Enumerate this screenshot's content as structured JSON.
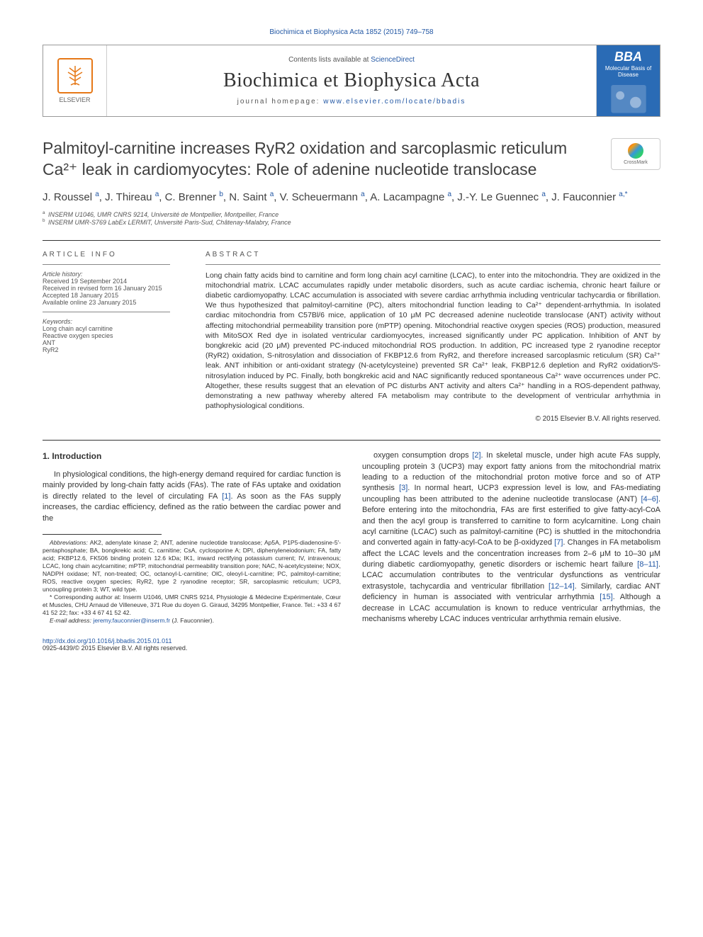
{
  "colors": {
    "link": "#2257a4",
    "text": "#333333",
    "heading": "#404040",
    "elsevier_orange": "#e67817",
    "bba_blue": "#2a6bb5"
  },
  "top_citation": "Biochimica et Biophysica Acta 1852 (2015) 749–758",
  "header": {
    "elsevier_label": "ELSEVIER",
    "contents_prefix": "Contents lists available at ",
    "contents_link": "ScienceDirect",
    "journal_name": "Biochimica et Biophysica Acta",
    "homepage_prefix": "journal homepage: ",
    "homepage_link": "www.elsevier.com/locate/bbadis",
    "bba_label": "BBA",
    "bba_sub": "Molecular Basis of Disease"
  },
  "crossmark_label": "CrossMark",
  "title": "Palmitoyl-carnitine increases RyR2 oxidation and sarcoplasmic reticulum Ca²⁺ leak in cardiomyocytes: Role of adenine nucleotide translocase",
  "authors_html": "J. Roussel <sup>a</sup>, J. Thireau <sup>a</sup>, C. Brenner <sup>b</sup>, N. Saint <sup>a</sup>, V. Scheuermann <sup>a</sup>, A. Lacampagne <sup>a</sup>, J.-Y. Le Guennec <sup>a</sup>, J. Fauconnier <sup>a,*</sup>",
  "affiliations": [
    {
      "sup": "a",
      "text": "INSERM U1046, UMR CNRS 9214, Université de Montpellier, Montpellier, France"
    },
    {
      "sup": "b",
      "text": "INSERM UMR-S769 LabEx LERMIT, Université Paris-Sud, Châtenay-Malabry, France"
    }
  ],
  "info": {
    "heading": "ARTICLE INFO",
    "history_label": "Article history:",
    "history": [
      "Received 19 September 2014",
      "Received in revised form 16 January 2015",
      "Accepted 18 January 2015",
      "Available online 23 January 2015"
    ],
    "keywords_label": "Keywords:",
    "keywords": [
      "Long chain acyl carnitine",
      "Reactive oxygen species",
      "ANT",
      "RyR2"
    ]
  },
  "abstract": {
    "heading": "ABSTRACT",
    "text": "Long chain fatty acids bind to carnitine and form long chain acyl carnitine (LCAC), to enter into the mitochondria. They are oxidized in the mitochondrial matrix. LCAC accumulates rapidly under metabolic disorders, such as acute cardiac ischemia, chronic heart failure or diabetic cardiomyopathy. LCAC accumulation is associated with severe cardiac arrhythmia including ventricular tachycardia or fibrillation. We thus hypothesized that palmitoyl-carnitine (PC), alters mitochondrial function leading to Ca²⁺ dependent-arrhythmia. In isolated cardiac mitochondria from C57Bl/6 mice, application of 10 μM PC decreased adenine nucleotide translocase (ANT) activity without affecting mitochondrial permeability transition pore (mPTP) opening. Mitochondrial reactive oxygen species (ROS) production, measured with MitoSOX Red dye in isolated ventricular cardiomyocytes, increased significantly under PC application. Inhibition of ANT by bongkrekic acid (20 μM) prevented PC-induced mitochondrial ROS production. In addition, PC increased type 2 ryanodine receptor (RyR2) oxidation, S-nitrosylation and dissociation of FKBP12.6 from RyR2, and therefore increased sarcoplasmic reticulum (SR) Ca²⁺ leak. ANT inhibition or anti-oxidant strategy (N-acetylcysteine) prevented SR Ca²⁺ leak, FKBP12.6 depletion and RyR2 oxidation/S-nitrosylation induced by PC. Finally, both bongkrekic acid and NAC significantly reduced spontaneous Ca²⁺ wave occurrences under PC. Altogether, these results suggest that an elevation of PC disturbs ANT activity and alters Ca²⁺ handling in a ROS-dependent pathway, demonstrating a new pathway whereby altered FA metabolism may contribute to the development of ventricular arrhythmia in pathophysiological conditions.",
    "copyright": "© 2015 Elsevier B.V. All rights reserved."
  },
  "intro": {
    "heading": "1. Introduction",
    "col1": "In physiological conditions, the high-energy demand required for cardiac function is mainly provided by long-chain fatty acids (FAs). The rate of FAs uptake and oxidation is directly related to the level of circulating FA [1]. As soon as the FAs supply increases, the cardiac efficiency, defined as the ratio between the cardiac power and the",
    "col2": "oxygen consumption drops [2]. In skeletal muscle, under high acute FAs supply, uncoupling protein 3 (UCP3) may export fatty anions from the mitochondrial matrix leading to a reduction of the mitochondrial proton motive force and so of ATP synthesis [3]. In normal heart, UCP3 expression level is low, and FAs-mediating uncoupling has been attributed to the adenine nucleotide translocase (ANT) [4–6]. Before entering into the mitochondria, FAs are first esterified to give fatty-acyl-CoA and then the acyl group is transferred to carnitine to form acylcarnitine. Long chain acyl carnitine (LCAC) such as palmitoyl-carnitine (PC) is shuttled in the mitochondria and converted again in fatty-acyl-CoA to be β-oxidyzed [7]. Changes in FA metabolism affect the LCAC levels and the concentration increases from 2–6 μM to 10–30 μM during diabetic cardiomyopathy, genetic disorders or ischemic heart failure [8–11]. LCAC accumulation contributes to the ventricular dysfunctions as ventricular extrasystole, tachycardia and ventricular fibrillation [12–14]. Similarly, cardiac ANT deficiency in human is associated with ventricular arrhythmia [15]. Although a decrease in LCAC accumulation is known to reduce ventricular arrhythmias, the mechanisms whereby LCAC induces ventricular arrhythmia remain elusive."
  },
  "footnotes": {
    "abbrev_label": "Abbreviations:",
    "abbrev": "AK2, adenylate kinase 2; ANT, adenine nucleotide translocase; Ap5A, P1P5-diadenosine-5′-pentaphosphate; BA, bongkrekic acid; C, carnitine; CsA, cyclosporine A; DPI, diphenyleneiodonium; FA, fatty acid; FKBP12.6, FK506 binding protein 12.6 kDa; IK1, inward rectifying potassium current; IV, intravenous; LCAC, long chain acylcarnitine; mPTP, mitochondrial permeability transition pore; NAC, N-acetylcysteine; NOX, NADPH oxidase; NT, non-treated; OC, octanoyl-L-carnitine; OlC, oleoyl-L-carnitine; PC, palmitoyl-carnitine; ROS, reactive oxygen species; RyR2, type 2 ryanodine receptor; SR, sarcoplasmic reticulum; UCP3, uncoupling protein 3; WT, wild type.",
    "corr_label": "*",
    "corr": "Corresponding author at: Inserm U1046, UMR CNRS 9214, Physiologie & Médecine Expérimentale, Cœur et Muscles, CHU Arnaud de Villeneuve, 371 Rue du doyen G. Giraud, 34295 Montpellier, France. Tel.: +33 4 67 41 52 22; fax: +33 4 67 41 52 42.",
    "email_label": "E-mail address:",
    "email": "jeremy.fauconnier@inserm.fr",
    "email_suffix": "(J. Fauconnier)."
  },
  "footer": {
    "doi": "http://dx.doi.org/10.1016/j.bbadis.2015.01.011",
    "copyright_line": "0925-4439/© 2015 Elsevier B.V. All rights reserved."
  }
}
